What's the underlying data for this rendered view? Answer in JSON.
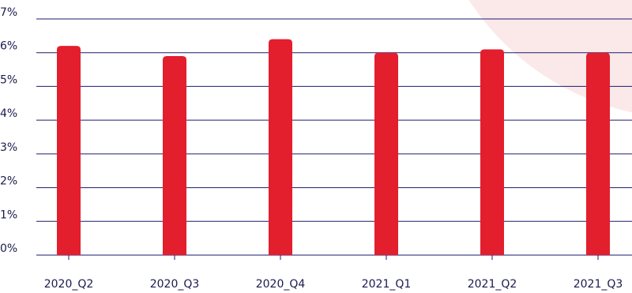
{
  "chart_data": {
    "type": "bar",
    "categories": [
      "2020_Q2",
      "2020_Q3",
      "2020_Q4",
      "2021_Q1",
      "2021_Q2",
      "2021_Q3"
    ],
    "values": [
      6.2,
      5.9,
      6.4,
      6.0,
      6.1,
      6.0
    ],
    "ylim": [
      0,
      7
    ],
    "yticks": [
      "0%",
      "1%",
      "2%",
      "3%",
      "4%",
      "5%",
      "6%",
      "7%"
    ],
    "grid": true,
    "colors": {
      "bar": "#e31e2d",
      "grid": "#1a1a6e",
      "text": "#1a1a4e",
      "decoration": "#fbe9ea"
    }
  }
}
